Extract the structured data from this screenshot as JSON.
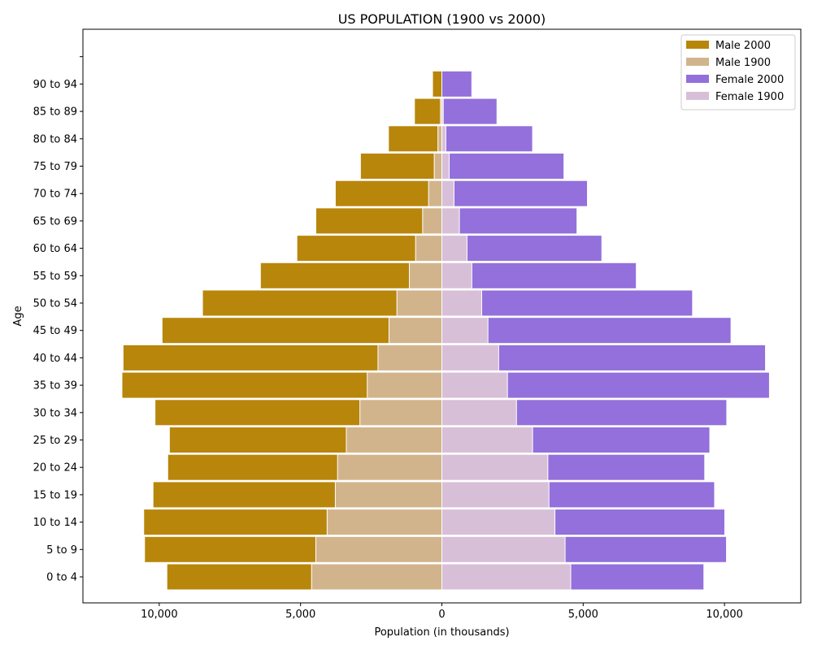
{
  "chart_data": {
    "type": "bar",
    "orientation": "horizontal",
    "title": "US POPULATION (1900 vs 2000)",
    "xlabel": "Population (in thousands)",
    "ylabel": "Age",
    "xlim": [
      -12700,
      12700
    ],
    "x_ticks": [
      -10000,
      -5000,
      0,
      5000,
      10000
    ],
    "x_tick_labels": [
      "10,000",
      "5,000",
      "0",
      "5,000",
      "10,000"
    ],
    "categories": [
      "0 to 4",
      "5 to 9",
      "10 to 14",
      "15 to 19",
      "20 to 24",
      "25 to 29",
      "30 to 34",
      "35 to 39",
      "40 to 44",
      "45 to 49",
      "50 to 54",
      "55 to 59",
      "60 to 64",
      "65 to 69",
      "70 to 74",
      "75 to 79",
      "80 to 84",
      "85 to 89",
      "90 to 94",
      ""
    ],
    "grid": false,
    "legend_position": "top-right",
    "series": [
      {
        "name": "Male 2000",
        "color": "#b8860b",
        "side": "left",
        "values": [
          9730,
          10520,
          10550,
          10220,
          9700,
          9640,
          10150,
          11320,
          11280,
          9900,
          8470,
          6420,
          5130,
          4460,
          3770,
          2880,
          1890,
          970,
          330,
          0
        ]
      },
      {
        "name": "Male 1900",
        "color": "#d2b48c",
        "side": "left",
        "values": [
          4610,
          4460,
          4060,
          3770,
          3690,
          3380,
          2900,
          2640,
          2260,
          1870,
          1590,
          1150,
          930,
          680,
          470,
          270,
          140,
          50,
          0,
          0
        ]
      },
      {
        "name": "Female 2000",
        "color": "#9370db",
        "side": "right",
        "values": [
          9270,
          10070,
          10010,
          9650,
          9300,
          9480,
          10080,
          11590,
          11450,
          10230,
          8870,
          6880,
          5660,
          4780,
          5150,
          4320,
          3210,
          1950,
          1060,
          0
        ]
      },
      {
        "name": "Female 1900",
        "color": "#d8bfd8",
        "side": "right",
        "values": [
          4560,
          4360,
          4000,
          3790,
          3750,
          3210,
          2640,
          2320,
          2010,
          1630,
          1410,
          1060,
          890,
          620,
          430,
          260,
          140,
          50,
          0,
          0
        ]
      }
    ]
  }
}
